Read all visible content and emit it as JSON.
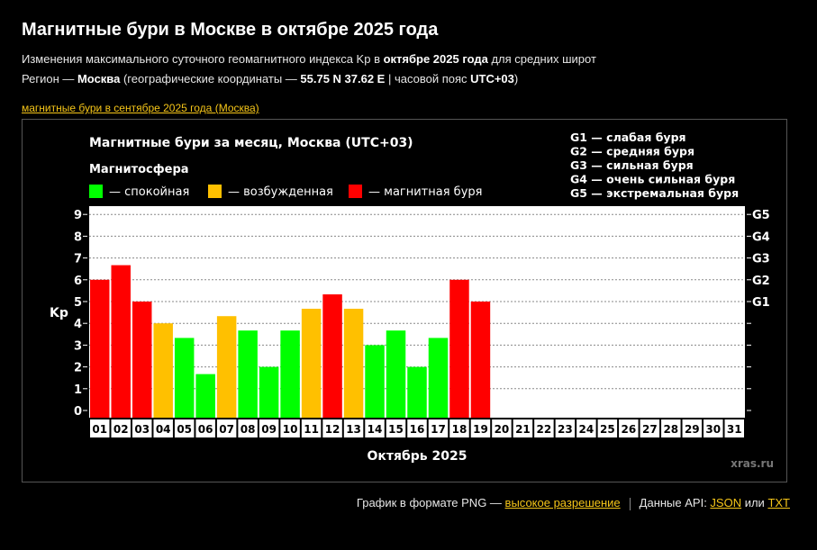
{
  "page": {
    "title": "Магнитные бури в Москве в октябре 2025 года",
    "subtitle1": {
      "pre": "Изменения максимального суточного геомагнитного индекса Kp в ",
      "bold": "октябре 2025 года",
      "post": " для средних широт"
    },
    "subtitle2": {
      "pre": "Регион — ",
      "city": "Москва",
      "mid": " (географические координаты — ",
      "coords": "55.75 N 37.62 E",
      "mid2": " | часовой пояс ",
      "tz": "UTC+03",
      "post": ")"
    },
    "prev_link": "магнитные бури в сентябре 2025 года (Москва)"
  },
  "footer": {
    "png_text": "График в формате PNG — ",
    "hires_link": "высокое разрешение",
    "api_text": "Данные API: ",
    "json_link": "JSON",
    "or_text": " или ",
    "txt_link": "TXT"
  },
  "chart_data": {
    "type": "bar",
    "title": "Магнитные бури за месяц, Москва (UTC+03)",
    "legend_title": "Магнитосфера",
    "legend": [
      {
        "label": "— спокойная",
        "color": "#00ff00"
      },
      {
        "label": "— возбужденная",
        "color": "#ffc000"
      },
      {
        "label": "— магнитная буря",
        "color": "#ff0000"
      }
    ],
    "g_legend": [
      "G1 — слабая буря",
      "G2 — средняя буря",
      "G3 — сильная буря",
      "G4 — очень сильная буря",
      "G5 — экстремальная буря"
    ],
    "ylabel": "Kp",
    "xlabel": "Октябрь 2025",
    "ylim": [
      0,
      9
    ],
    "yticks": [
      "0",
      "1",
      "2",
      "3",
      "4",
      "5",
      "6",
      "7",
      "8",
      "9"
    ],
    "g_ticks": [
      {
        "label": "G1",
        "value": 5
      },
      {
        "label": "G2",
        "value": 6
      },
      {
        "label": "G3",
        "value": 7
      },
      {
        "label": "G4",
        "value": 8
      },
      {
        "label": "G5",
        "value": 9
      }
    ],
    "categories": [
      "01",
      "02",
      "03",
      "04",
      "05",
      "06",
      "07",
      "08",
      "09",
      "10",
      "11",
      "12",
      "13",
      "14",
      "15",
      "16",
      "17",
      "18",
      "19",
      "20",
      "21",
      "22",
      "23",
      "24",
      "25",
      "26",
      "27",
      "28",
      "29",
      "30",
      "31"
    ],
    "values": [
      6.0,
      6.67,
      5.0,
      4.0,
      3.33,
      1.67,
      4.33,
      3.67,
      2.0,
      3.67,
      4.67,
      5.33,
      4.67,
      3.0,
      3.67,
      2.0,
      3.33,
      6.0,
      5.0,
      null,
      null,
      null,
      null,
      null,
      null,
      null,
      null,
      null,
      null,
      null,
      null
    ],
    "status": [
      "storm",
      "storm",
      "storm",
      "excited",
      "quiet",
      "quiet",
      "excited",
      "quiet",
      "quiet",
      "quiet",
      "excited",
      "storm",
      "excited",
      "quiet",
      "quiet",
      "quiet",
      "quiet",
      "storm",
      "storm",
      null,
      null,
      null,
      null,
      null,
      null,
      null,
      null,
      null,
      null,
      null,
      null
    ],
    "status_colors": {
      "quiet": "#00ff00",
      "excited": "#ffc000",
      "storm": "#ff0000"
    },
    "watermark": "xras.ru",
    "grid": true
  }
}
